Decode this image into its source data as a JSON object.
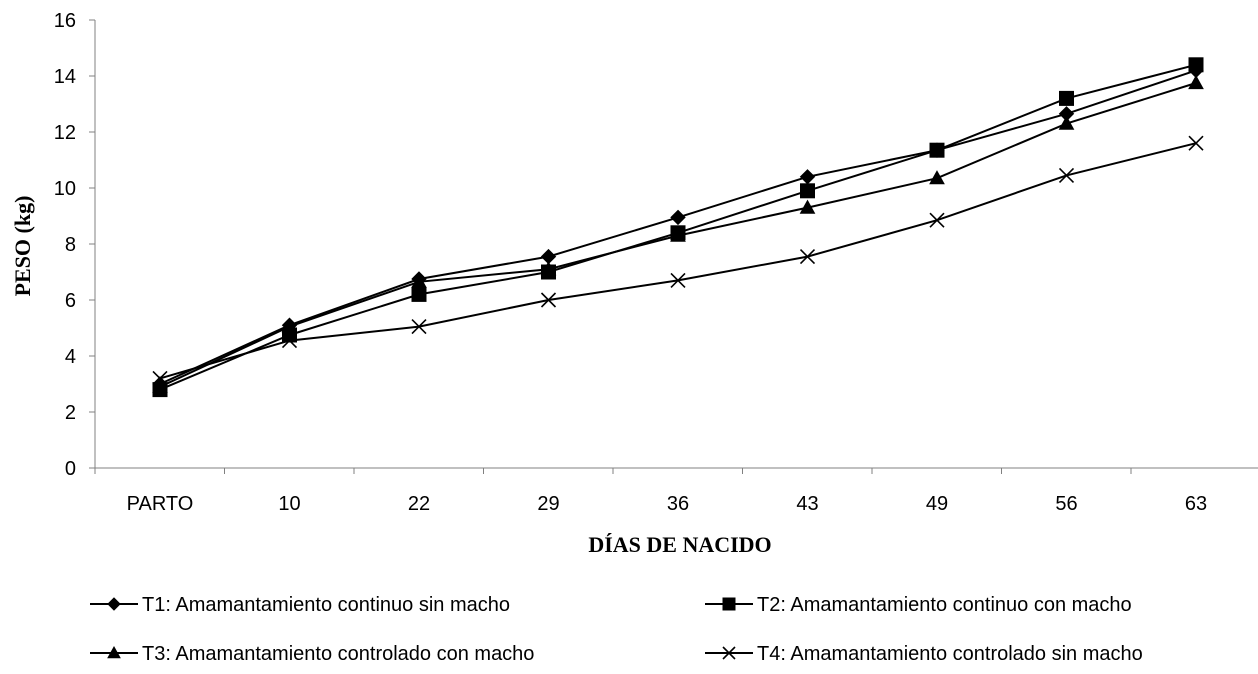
{
  "chart_data": {
    "type": "line",
    "categories": [
      "PARTO",
      "10",
      "22",
      "29",
      "36",
      "43",
      "49",
      "56",
      "63"
    ],
    "series": [
      {
        "name": "T1: Amamantamiento continuo sin macho",
        "marker": "diamond",
        "values": [
          3.0,
          5.1,
          6.75,
          7.55,
          8.95,
          10.4,
          11.35,
          12.65,
          14.2
        ]
      },
      {
        "name": "T2: Amamantamiento continuo con macho",
        "marker": "square",
        "values": [
          2.8,
          4.75,
          6.2,
          7.0,
          8.4,
          9.9,
          11.35,
          13.2,
          14.4
        ]
      },
      {
        "name": "T3: Amamantamiento controlado con macho",
        "marker": "triangle",
        "values": [
          2.9,
          5.05,
          6.65,
          7.1,
          8.3,
          9.3,
          10.35,
          12.3,
          13.75
        ]
      },
      {
        "name": "T4: Amamantamiento controlado sin macho",
        "marker": "x",
        "values": [
          3.2,
          4.55,
          5.05,
          6.0,
          6.7,
          7.55,
          8.85,
          10.45,
          11.6
        ]
      }
    ],
    "xlabel": "DÍAS DE NACIDO",
    "ylabel": "PESO (kg)",
    "ylim": [
      0,
      16
    ],
    "yticks": [
      0,
      2,
      4,
      6,
      8,
      10,
      12,
      14,
      16
    ],
    "grid": false,
    "legend_position": "bottom",
    "colors": {
      "line": "#000000",
      "axis": "#808080"
    }
  }
}
